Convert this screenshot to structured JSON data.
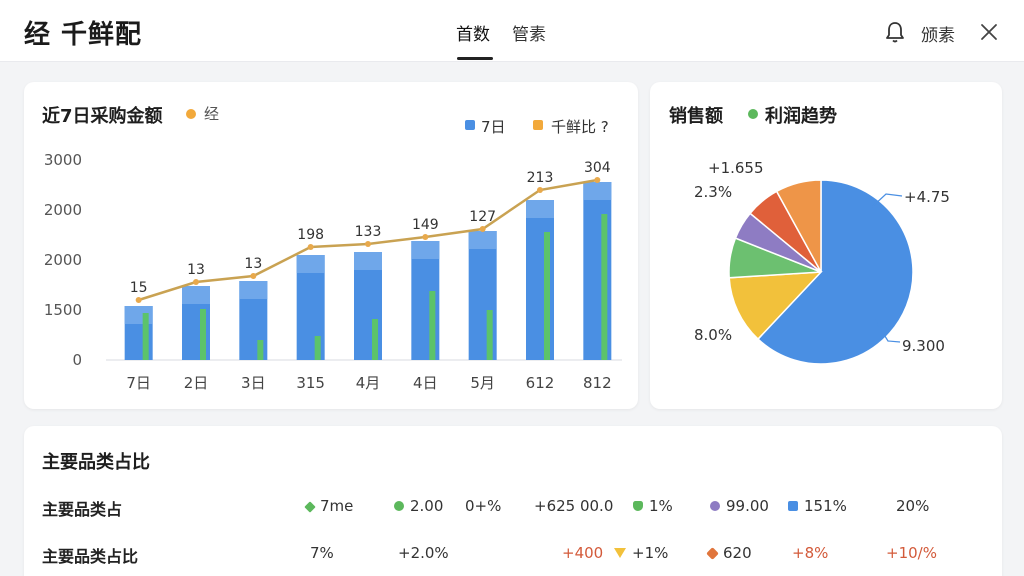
{
  "header": {
    "app_title": "经 千鲜配",
    "tabs": [
      {
        "label": "首数"
      },
      {
        "label": "管素"
      }
    ],
    "notice_label": "颁素",
    "icons": {
      "bell": "bell-icon",
      "close": "close-icon"
    }
  },
  "bar_card": {
    "title": "近7日采购金额",
    "title_tag": "经",
    "title_tag_color": "#f2a93b",
    "legend": [
      {
        "label": "7日",
        "color": "#4a8fe3"
      },
      {
        "label": "千鲜比 ?",
        "color": "#f2a93b"
      }
    ]
  },
  "pie_card": {
    "title_left": "销售额",
    "title_right": "利润趋势",
    "title_dot_color": "#5cb85c"
  },
  "table_card": {
    "title": "主要品类占比",
    "rows": [
      {
        "label": "主要品类占",
        "cells": [
          {
            "text": "7me",
            "icon": "diamond-icon",
            "color": "#5cb85c"
          },
          {
            "text": "2.00",
            "icon": "circle-icon",
            "color": "#5cb85c"
          },
          {
            "text": "0+%"
          },
          {
            "text": "+625 00.0"
          },
          {
            "text": "1%",
            "icon": "shield-icon",
            "color": "#5cb85c"
          },
          {
            "text": "99.00",
            "icon": "circle-icon",
            "color": "#8e7cc3"
          },
          {
            "text": "151%",
            "icon": "square-icon",
            "color": "#4a8fe3"
          },
          {
            "text": "20%"
          }
        ]
      },
      {
        "label": "主要品类占比",
        "cells": [
          {
            "text": "7%"
          },
          {
            "text": "+2.0%"
          },
          {
            "text": "+400",
            "red": true
          },
          {
            "text": "+1%",
            "icon": "triangle-down-icon",
            "color": "#f2c13b"
          },
          {
            "text": "620",
            "icon": "star-icon",
            "color": "#e0753c"
          },
          {
            "text": "+8%",
            "red": true
          },
          {
            "text": "+10/%",
            "red": true
          }
        ]
      }
    ]
  },
  "chart_data": [
    {
      "type": "bar",
      "title": "近7日采购金额",
      "categories": [
        "7日",
        "2日",
        "3日",
        "315",
        "4月",
        "4日",
        "5月",
        "612",
        "812"
      ],
      "y_tick_labels": [
        "0",
        "1500",
        "2000",
        "2000",
        "3000"
      ],
      "series": [
        {
          "name": "7日",
          "type": "bar",
          "color": "#4a8fe3",
          "values": [
            540,
            740,
            790,
            1050,
            1080,
            1190,
            1290,
            1600,
            1780
          ]
        },
        {
          "name": "7日",
          "type": "bar",
          "color": "#5cc36a",
          "values": [
            470,
            510,
            200,
            240,
            410,
            690,
            500,
            1280,
            1460
          ]
        },
        {
          "name": "千鲜比 ?",
          "type": "line",
          "color": "#c9a252",
          "values": [
            600,
            780,
            840,
            1130,
            1160,
            1230,
            1310,
            1700,
            1800
          ]
        }
      ],
      "data_labels": [
        "15",
        "13",
        "13",
        "198",
        "133",
        "149",
        "127",
        "213",
        "304"
      ],
      "ylim": [
        0,
        2000
      ],
      "grid": false,
      "legend_position": "top-right"
    },
    {
      "type": "pie",
      "slices": [
        {
          "value": 62,
          "color": "#4a8fe3"
        },
        {
          "value": 12,
          "color": "#f2c13b"
        },
        {
          "value": 7,
          "color": "#6cc070"
        },
        {
          "value": 5,
          "color": "#8e7cc3"
        },
        {
          "value": 6,
          "color": "#e0603a"
        },
        {
          "value": 8,
          "color": "#ee9548"
        }
      ],
      "annotations": [
        "+1.655",
        "2.3%",
        "+4.75",
        "8.0%",
        "9.300"
      ]
    }
  ]
}
